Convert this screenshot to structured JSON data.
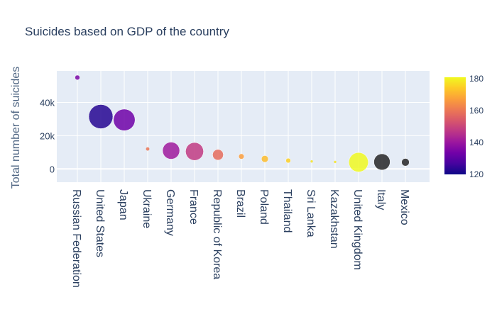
{
  "chart_data": {
    "type": "scatter",
    "title": "Suicides based on GDP of the country",
    "xlabel": "",
    "ylabel": "Total number of suicides",
    "ylim": [
      -8000,
      59000
    ],
    "yticks": [
      {
        "value": 0,
        "label": "0"
      },
      {
        "value": 20000,
        "label": "20k"
      },
      {
        "value": 40000,
        "label": "40k"
      }
    ],
    "categories": [
      "Russian Federation",
      "United States",
      "Japan",
      "Ukraine",
      "Germany",
      "France",
      "Republic of Korea",
      "Brazil",
      "Poland",
      "Thailand",
      "Sri Lanka",
      "Kazakhstan",
      "United Kingdom",
      "Italy",
      "Mexico"
    ],
    "values": [
      55000,
      31500,
      29500,
      12000,
      11000,
      10500,
      8500,
      7500,
      6000,
      5000,
      4500,
      4200,
      4000,
      4200,
      4000
    ],
    "marker_size_relative": [
      0.04,
      1.0,
      0.8,
      0.02,
      0.5,
      0.55,
      0.2,
      0.05,
      0.08,
      0.04,
      0.01,
      0.01,
      0.65,
      0.45,
      0.1
    ],
    "marker_color_value": [
      135,
      123,
      133,
      160,
      141,
      148,
      158,
      167,
      172,
      175,
      178,
      178,
      181,
      null,
      null
    ],
    "colorbar": {
      "range": [
        120,
        181
      ],
      "ticks": [
        120,
        140,
        160,
        180
      ],
      "colorscale": [
        "#0d0887",
        "#46039f",
        "#7201a8",
        "#9c179e",
        "#bd3786",
        "#d8576b",
        "#ed7953",
        "#fb9f3a",
        "#fdca26",
        "#f0f921"
      ]
    },
    "missing_color": "#262626",
    "plot_bg": "#e5ecf6",
    "grid": true
  }
}
